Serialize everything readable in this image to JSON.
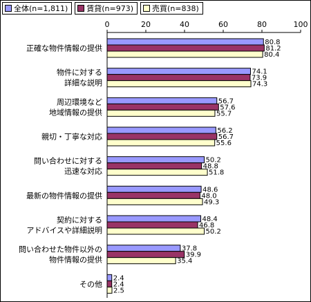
{
  "chart_data": {
    "type": "bar",
    "orientation": "horizontal",
    "xlim": [
      0,
      100
    ],
    "xticks": [
      0,
      20,
      40,
      60,
      80,
      100
    ],
    "grid": false,
    "legend_position": "top-left",
    "categories": [
      [
        "正確な物件情報の提供"
      ],
      [
        "物件に対する",
        "詳細な説明"
      ],
      [
        "周辺環境など",
        "地域情報の提供"
      ],
      [
        "親切・丁寧な対応"
      ],
      [
        "問い合わせに対する",
        "迅速な対応"
      ],
      [
        "最新の物件情報の提供"
      ],
      [
        "契約に対する",
        "アドバイスや詳細説明"
      ],
      [
        "問い合わせた物件以外の",
        "物件情報の提供"
      ],
      [
        "その他"
      ]
    ],
    "series": [
      {
        "name": "全体(n=1,811)",
        "color": "#9999ff",
        "values": [
          80.8,
          74.1,
          56.7,
          56.2,
          50.2,
          48.6,
          48.4,
          37.8,
          2.4
        ]
      },
      {
        "name": "賃貸(n=973)",
        "color": "#993366",
        "values": [
          81.2,
          73.9,
          57.6,
          56.7,
          48.8,
          48.0,
          46.8,
          39.9,
          2.4
        ]
      },
      {
        "name": "売買(n=838)",
        "color": "#ffffcc",
        "values": [
          80.4,
          74.3,
          55.7,
          55.6,
          51.8,
          49.3,
          50.2,
          35.4,
          2.5
        ]
      }
    ],
    "value_labels": [
      [
        "80.8",
        "81.2",
        "80.4"
      ],
      [
        "74.1",
        "73.9",
        "74.3"
      ],
      [
        "56.7",
        "57.6",
        "55.7"
      ],
      [
        "56.2",
        "56.7",
        "55.6"
      ],
      [
        "50.2",
        "48.8",
        "51.8"
      ],
      [
        "48.6",
        "48.0",
        "49.3"
      ],
      [
        "48.4",
        "46.8",
        "50.2"
      ],
      [
        "37.8",
        "39.9",
        "35.4"
      ],
      [
        "2.4",
        "2.4",
        "2.5"
      ]
    ]
  }
}
